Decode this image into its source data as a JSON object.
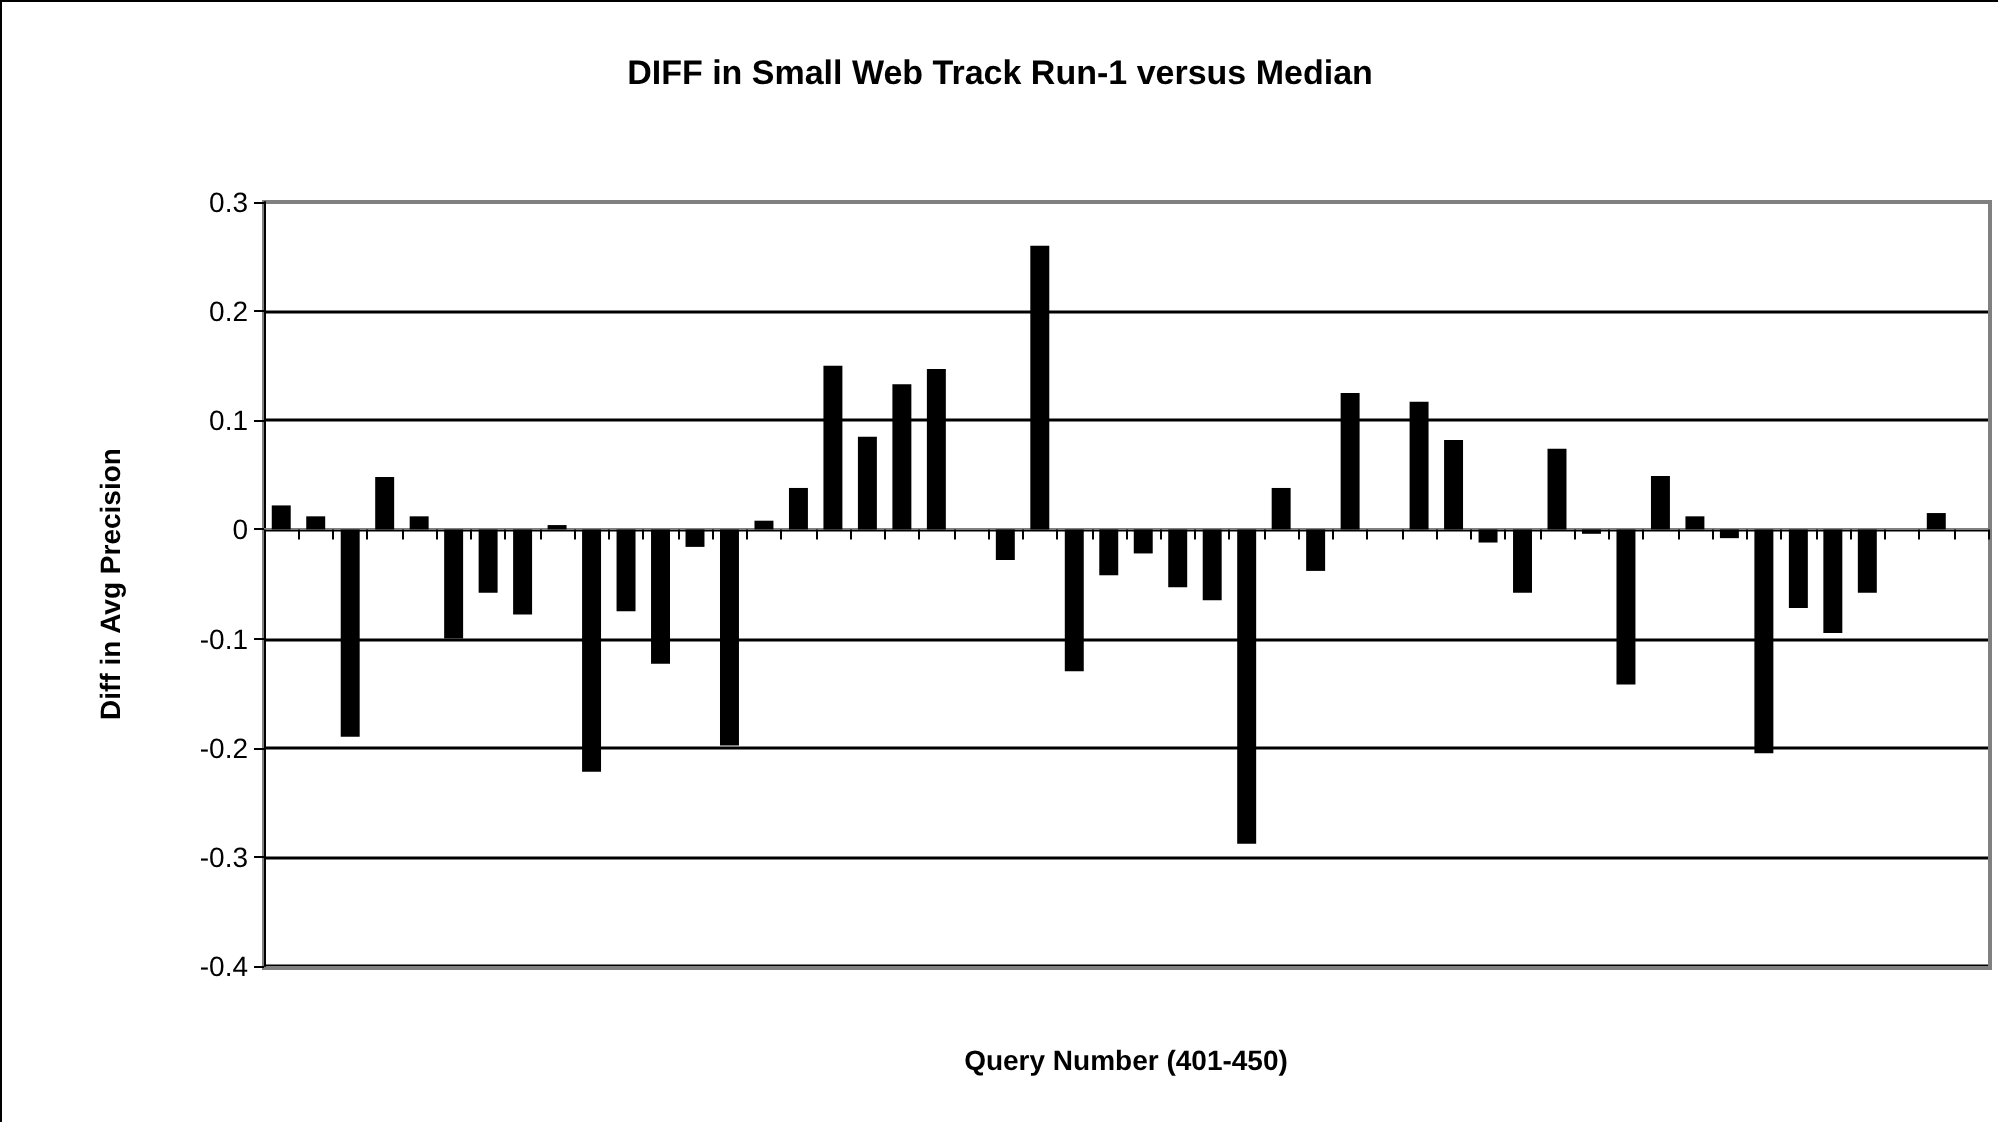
{
  "chart_data": {
    "type": "bar",
    "title": "DIFF in Small Web Track Run-1 versus Median",
    "xlabel": "Query Number (401-450)",
    "ylabel": "Diff in Avg Precision",
    "categories": [
      null,
      null,
      null,
      null,
      null,
      null,
      null,
      null,
      null,
      null,
      null,
      null,
      null,
      null,
      null,
      null,
      null,
      null,
      null,
      null,
      null,
      null,
      null,
      null,
      null,
      null,
      null,
      null,
      null,
      null,
      null,
      null,
      null,
      null,
      null,
      null,
      null,
      null,
      null,
      null,
      null,
      null,
      null,
      null,
      null,
      null,
      null,
      null,
      null,
      null
    ],
    "values": [
      0.022,
      0.012,
      -0.19,
      0.048,
      0.012,
      -0.1,
      -0.058,
      -0.078,
      0.004,
      -0.222,
      -0.075,
      -0.123,
      -0.016,
      -0.198,
      0.008,
      0.038,
      0.15,
      0.085,
      0.133,
      0.147,
      null,
      -0.028,
      0.26,
      -0.13,
      -0.042,
      -0.022,
      -0.053,
      -0.065,
      -0.288,
      0.038,
      -0.038,
      0.125,
      null,
      0.117,
      0.082,
      -0.012,
      -0.058,
      0.074,
      -0.004,
      -0.142,
      0.049,
      0.012,
      -0.008,
      -0.205,
      -0.072,
      -0.095,
      -0.058,
      null,
      0.015,
      null
    ],
    "color": "#000000",
    "ylim": [
      -0.4,
      0.3
    ],
    "yticks": [
      -0.4,
      -0.3,
      -0.2,
      -0.1,
      0,
      0.1,
      0.2,
      0.3
    ],
    "grid": "y"
  }
}
